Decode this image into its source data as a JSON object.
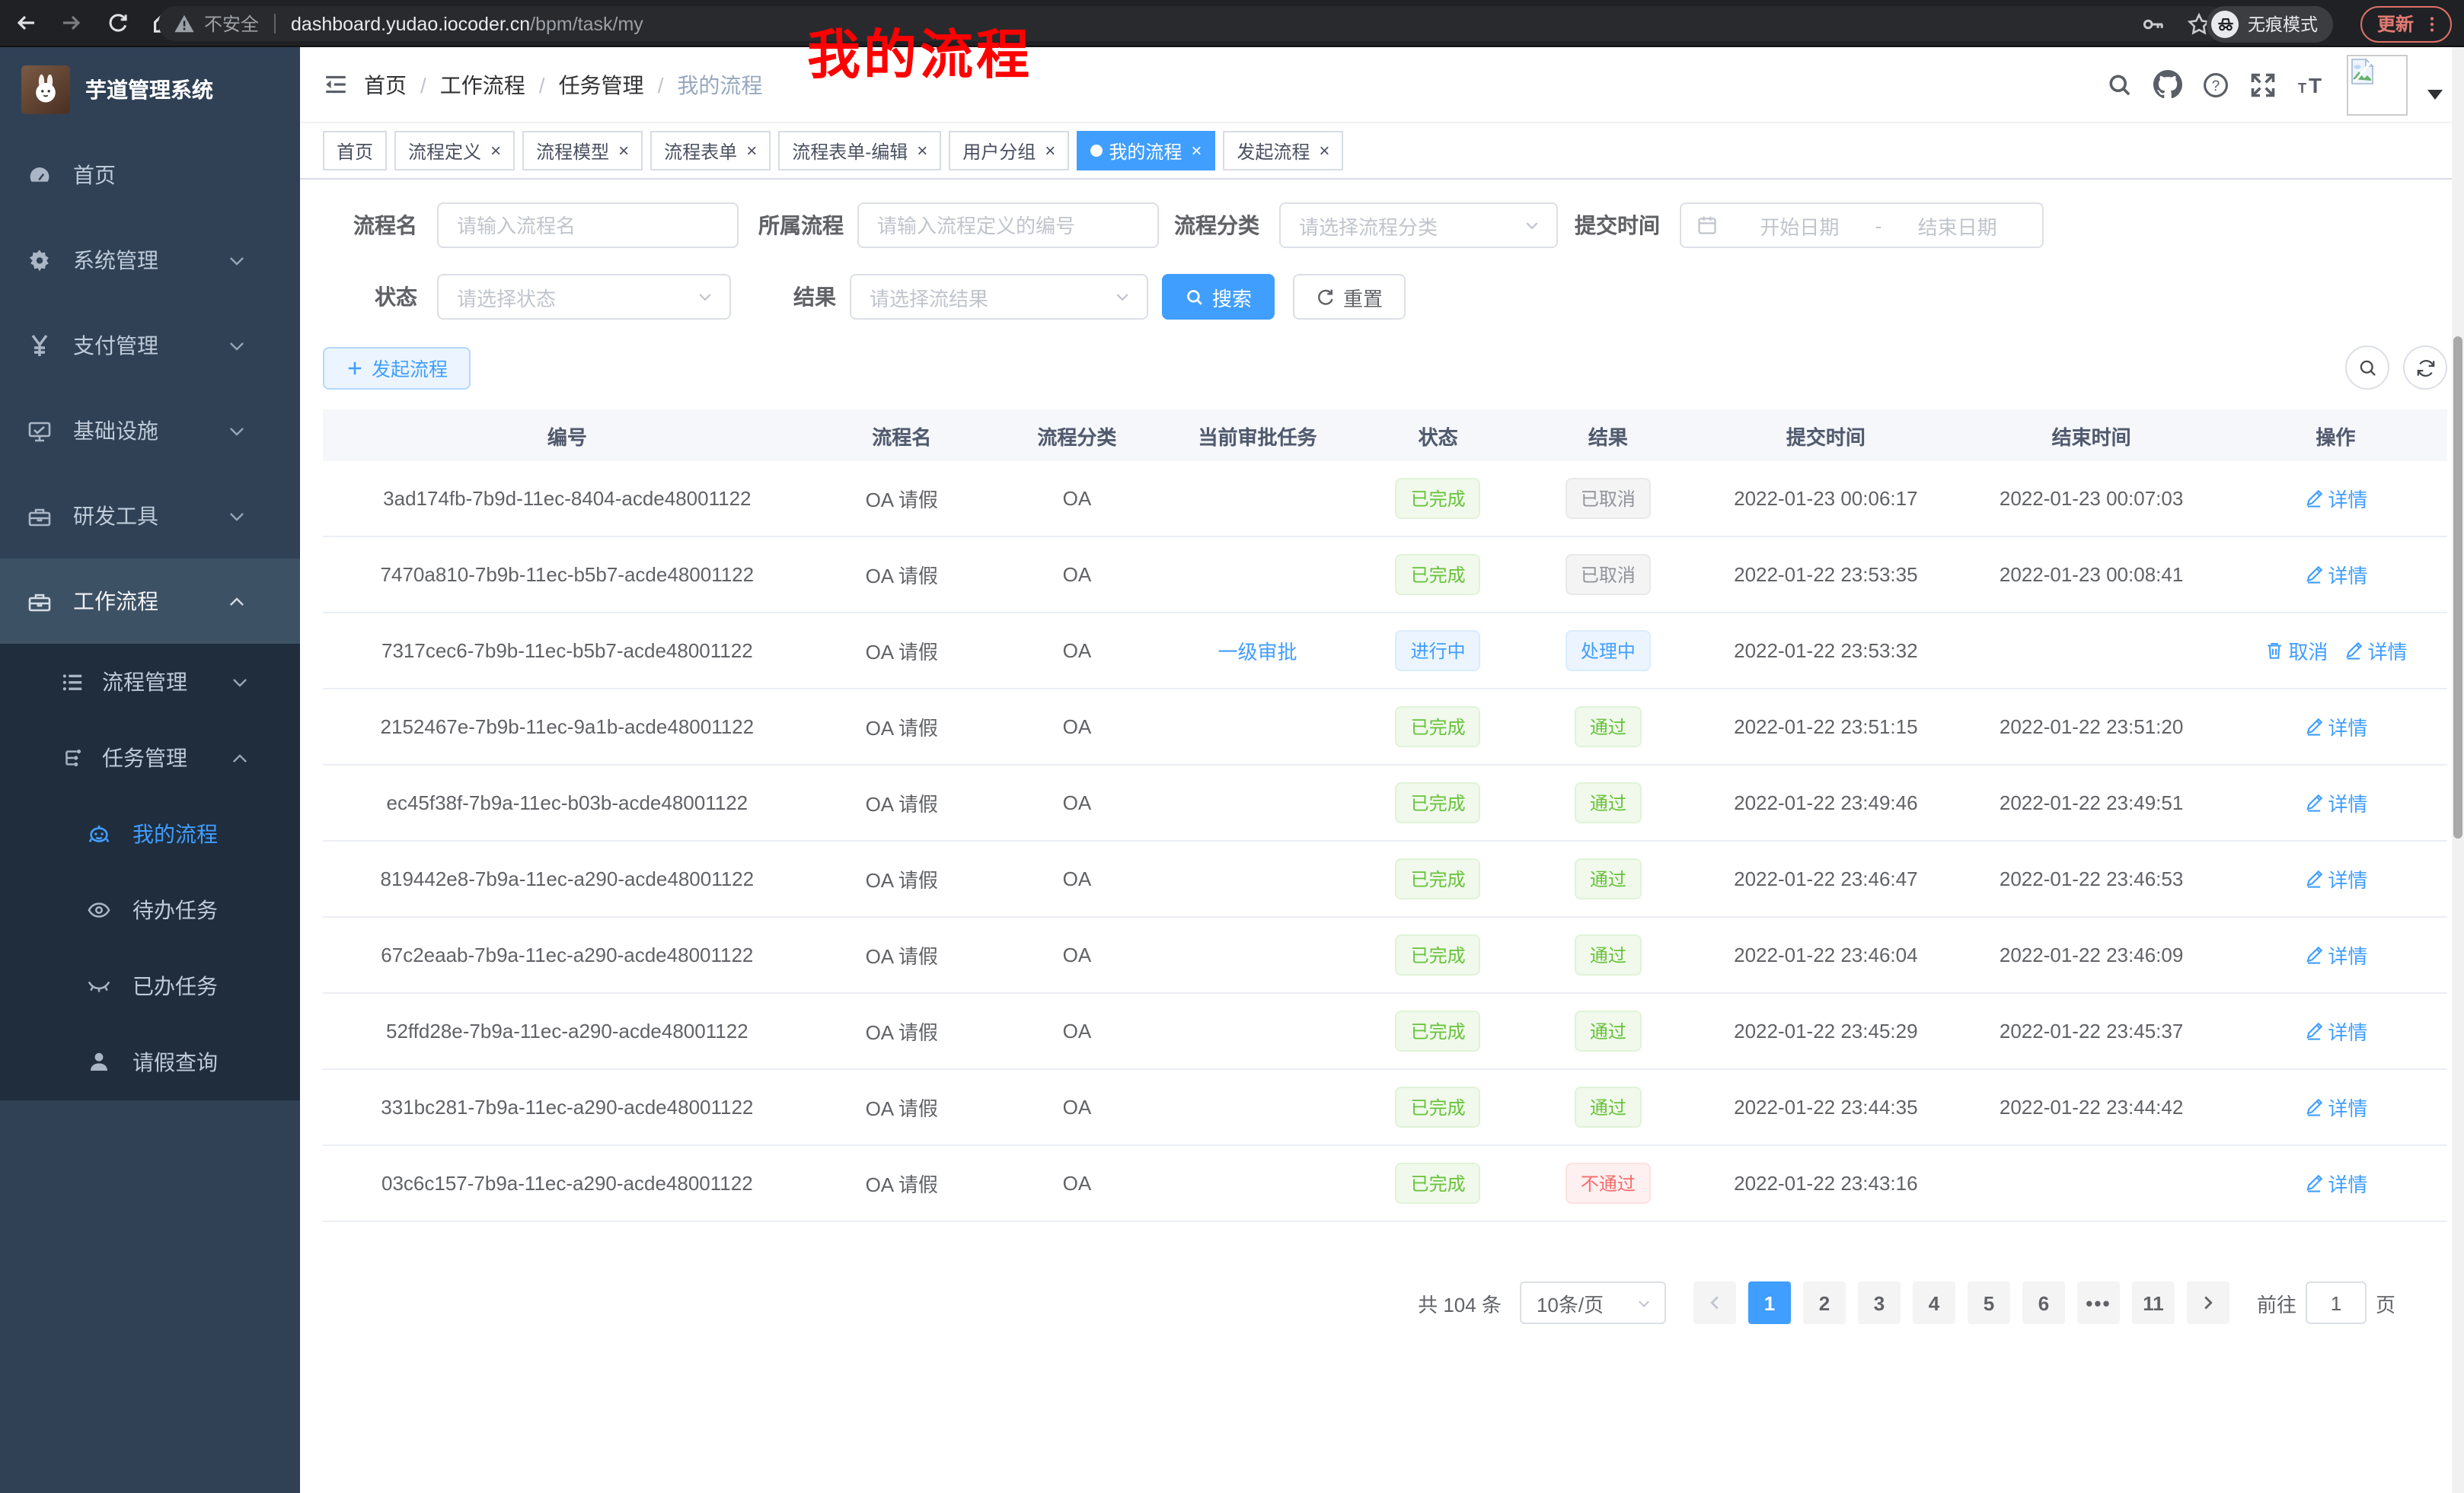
{
  "browser": {
    "security_label": "不安全",
    "url_host": "dashboard.yudao.iocoder.cn",
    "url_path": "/bpm/task/my",
    "incognito_label": "无痕模式",
    "update_label": "更新"
  },
  "sidebar": {
    "app_title": "芋道管理系统",
    "items": [
      {
        "label": "首页",
        "icon": "dashboard",
        "level": 0
      },
      {
        "label": "系统管理",
        "icon": "gear",
        "level": 0,
        "chevron": "down"
      },
      {
        "label": "支付管理",
        "icon": "yen",
        "level": 0,
        "chevron": "down"
      },
      {
        "label": "基础设施",
        "icon": "monitor",
        "level": 0,
        "chevron": "down"
      },
      {
        "label": "研发工具",
        "icon": "toolbox",
        "level": 0,
        "chevron": "down"
      },
      {
        "label": "工作流程",
        "icon": "briefcase",
        "level": 0,
        "chevron": "up",
        "open": true
      },
      {
        "label": "流程管理",
        "icon": "list-tree",
        "level": 1,
        "chevron": "down"
      },
      {
        "label": "任务管理",
        "icon": "flow-tree",
        "level": 1,
        "chevron": "up"
      },
      {
        "label": "我的流程",
        "icon": "robot",
        "level": 2,
        "active": true
      },
      {
        "label": "待办任务",
        "icon": "eye",
        "level": 2
      },
      {
        "label": "已办任务",
        "icon": "eye-closed",
        "level": 2
      },
      {
        "label": "请假查询",
        "icon": "user",
        "level": 2
      }
    ]
  },
  "breadcrumb": {
    "items": [
      "首页",
      "工作流程",
      "任务管理",
      "我的流程"
    ]
  },
  "annotation": "我的流程",
  "tabs": [
    {
      "label": "首页",
      "closable": false,
      "active": false
    },
    {
      "label": "流程定义",
      "closable": true,
      "active": false
    },
    {
      "label": "流程模型",
      "closable": true,
      "active": false
    },
    {
      "label": "流程表单",
      "closable": true,
      "active": false
    },
    {
      "label": "流程表单-编辑",
      "closable": true,
      "active": false
    },
    {
      "label": "用户分组",
      "closable": true,
      "active": false
    },
    {
      "label": "我的流程",
      "closable": true,
      "active": true
    },
    {
      "label": "发起流程",
      "closable": true,
      "active": false
    }
  ],
  "filters": {
    "name": {
      "label": "流程名",
      "placeholder": "请输入流程名"
    },
    "process": {
      "label": "所属流程",
      "placeholder": "请输入流程定义的编号"
    },
    "category": {
      "label": "流程分类",
      "placeholder": "请选择流程分类"
    },
    "submit_time": {
      "label": "提交时间",
      "start_placeholder": "开始日期",
      "separator": "-",
      "end_placeholder": "结束日期"
    },
    "status": {
      "label": "状态",
      "placeholder": "请选择状态"
    },
    "result": {
      "label": "结果",
      "placeholder": "请选择流结果"
    },
    "search_label": "搜索",
    "reset_label": "重置"
  },
  "toolbar": {
    "create_label": "发起流程"
  },
  "table": {
    "columns": [
      "编号",
      "流程名",
      "流程分类",
      "当前审批任务",
      "状态",
      "结果",
      "提交时间",
      "结束时间",
      "操作"
    ],
    "rows": [
      {
        "id": "3ad174fb-7b9d-11ec-8404-acde48001122",
        "name": "OA 请假",
        "category": "OA",
        "task": "",
        "status": {
          "text": "已完成",
          "type": "success"
        },
        "result": {
          "text": "已取消",
          "type": "info"
        },
        "submit": "2022-01-23 00:06:17",
        "end": "2022-01-23 00:07:03",
        "actions": [
          {
            "label": "详情",
            "icon": "edit"
          }
        ]
      },
      {
        "id": "7470a810-7b9b-11ec-b5b7-acde48001122",
        "name": "OA 请假",
        "category": "OA",
        "task": "",
        "status": {
          "text": "已完成",
          "type": "success"
        },
        "result": {
          "text": "已取消",
          "type": "info"
        },
        "submit": "2022-01-22 23:53:35",
        "end": "2022-01-23 00:08:41",
        "actions": [
          {
            "label": "详情",
            "icon": "edit"
          }
        ]
      },
      {
        "id": "7317cec6-7b9b-11ec-b5b7-acde48001122",
        "name": "OA 请假",
        "category": "OA",
        "task": "一级审批",
        "status": {
          "text": "进行中",
          "type": "primary"
        },
        "result": {
          "text": "处理中",
          "type": "primary"
        },
        "submit": "2022-01-22 23:53:32",
        "end": "",
        "actions": [
          {
            "label": "取消",
            "icon": "trash"
          },
          {
            "label": "详情",
            "icon": "edit"
          }
        ]
      },
      {
        "id": "2152467e-7b9b-11ec-9a1b-acde48001122",
        "name": "OA 请假",
        "category": "OA",
        "task": "",
        "status": {
          "text": "已完成",
          "type": "success"
        },
        "result": {
          "text": "通过",
          "type": "success"
        },
        "submit": "2022-01-22 23:51:15",
        "end": "2022-01-22 23:51:20",
        "actions": [
          {
            "label": "详情",
            "icon": "edit"
          }
        ]
      },
      {
        "id": "ec45f38f-7b9a-11ec-b03b-acde48001122",
        "name": "OA 请假",
        "category": "OA",
        "task": "",
        "status": {
          "text": "已完成",
          "type": "success"
        },
        "result": {
          "text": "通过",
          "type": "success"
        },
        "submit": "2022-01-22 23:49:46",
        "end": "2022-01-22 23:49:51",
        "actions": [
          {
            "label": "详情",
            "icon": "edit"
          }
        ]
      },
      {
        "id": "819442e8-7b9a-11ec-a290-acde48001122",
        "name": "OA 请假",
        "category": "OA",
        "task": "",
        "status": {
          "text": "已完成",
          "type": "success"
        },
        "result": {
          "text": "通过",
          "type": "success"
        },
        "submit": "2022-01-22 23:46:47",
        "end": "2022-01-22 23:46:53",
        "actions": [
          {
            "label": "详情",
            "icon": "edit"
          }
        ]
      },
      {
        "id": "67c2eaab-7b9a-11ec-a290-acde48001122",
        "name": "OA 请假",
        "category": "OA",
        "task": "",
        "status": {
          "text": "已完成",
          "type": "success"
        },
        "result": {
          "text": "通过",
          "type": "success"
        },
        "submit": "2022-01-22 23:46:04",
        "end": "2022-01-22 23:46:09",
        "actions": [
          {
            "label": "详情",
            "icon": "edit"
          }
        ]
      },
      {
        "id": "52ffd28e-7b9a-11ec-a290-acde48001122",
        "name": "OA 请假",
        "category": "OA",
        "task": "",
        "status": {
          "text": "已完成",
          "type": "success"
        },
        "result": {
          "text": "通过",
          "type": "success"
        },
        "submit": "2022-01-22 23:45:29",
        "end": "2022-01-22 23:45:37",
        "actions": [
          {
            "label": "详情",
            "icon": "edit"
          }
        ]
      },
      {
        "id": "331bc281-7b9a-11ec-a290-acde48001122",
        "name": "OA 请假",
        "category": "OA",
        "task": "",
        "status": {
          "text": "已完成",
          "type": "success"
        },
        "result": {
          "text": "通过",
          "type": "success"
        },
        "submit": "2022-01-22 23:44:35",
        "end": "2022-01-22 23:44:42",
        "actions": [
          {
            "label": "详情",
            "icon": "edit"
          }
        ]
      },
      {
        "id": "03c6c157-7b9a-11ec-a290-acde48001122",
        "name": "OA 请假",
        "category": "OA",
        "task": "",
        "status": {
          "text": "已完成",
          "type": "success"
        },
        "result": {
          "text": "不通过",
          "type": "danger"
        },
        "submit": "2022-01-22 23:43:16",
        "end": "",
        "actions": [
          {
            "label": "详情",
            "icon": "edit"
          }
        ]
      }
    ]
  },
  "pagination": {
    "total_label": "共 104 条",
    "page_size_label": "10条/页",
    "pages": [
      "1",
      "2",
      "3",
      "4",
      "5",
      "6",
      "...",
      "11"
    ],
    "active_page": "1",
    "goto_label": "前往",
    "goto_value": "1",
    "page_suffix": "页"
  },
  "colors": {
    "accent": "#409eff",
    "sidebar_bg": "#304156",
    "submenu_bg": "#1f2d3d",
    "annotation_red": "#ff0000"
  }
}
